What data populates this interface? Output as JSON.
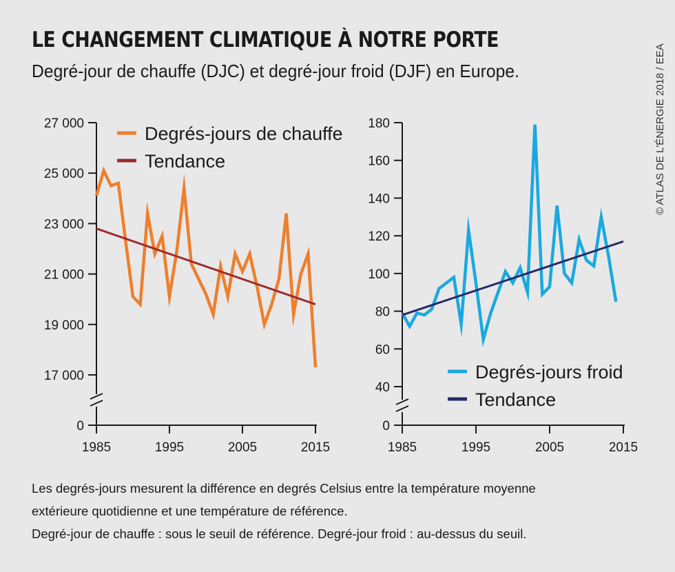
{
  "title": "LE CHANGEMENT CLIMATIQUE À NOTRE PORTE",
  "subtitle": "Degré-jour de chauffe (DJC) et degré-jour froid (DJF) en Europe.",
  "credit": "© ATLAS DE L'ÉNERGIE 2018 / EEA",
  "notes": [
    "Les degrés-jours mesurent la différence en degrés Celsius entre la température moyenne",
    "extérieure quotidienne et une température de référence.",
    "Degré-jour de chauffe : sous le seuil de référence. Degré-jour froid : au-dessus du seuil."
  ],
  "colors": {
    "djc": "#ee7f2d",
    "djc_trend": "#9e2a2b",
    "djf": "#1aa9df",
    "djf_trend": "#252a6a",
    "axis": "#1a1a1a"
  },
  "chart_data": [
    {
      "type": "line",
      "title": "",
      "xlabel": "",
      "ylabel": "",
      "x_ticks": [
        "1985",
        "1995",
        "2005",
        "2015"
      ],
      "y_ticks": [
        "0",
        "17 000",
        "19 000",
        "21 000",
        "23 000",
        "25 000",
        "27 000"
      ],
      "ylim": [
        17000,
        27000
      ],
      "axis_break": true,
      "legend": "top-right",
      "x": [
        1985,
        1986,
        1987,
        1988,
        1989,
        1990,
        1991,
        1992,
        1993,
        1994,
        1995,
        1996,
        1997,
        1998,
        1999,
        2000,
        2001,
        2002,
        2003,
        2004,
        2005,
        2006,
        2007,
        2008,
        2009,
        2010,
        2011,
        2012,
        2013,
        2014,
        2015
      ],
      "series": [
        {
          "name": "Degrés-jours de chauffe",
          "values": [
            24100,
            25100,
            24500,
            24600,
            22300,
            20100,
            19800,
            23400,
            21800,
            22500,
            20100,
            21900,
            24400,
            21400,
            20800,
            20200,
            19400,
            21300,
            20100,
            21800,
            21100,
            21800,
            20500,
            19000,
            19800,
            20800,
            23400,
            19400,
            21000,
            21800,
            17300
          ]
        },
        {
          "name": "Tendance",
          "x": [
            1985,
            2015
          ],
          "values": [
            22800,
            19800
          ]
        }
      ]
    },
    {
      "type": "line",
      "title": "",
      "xlabel": "",
      "ylabel": "",
      "x_ticks": [
        "1985",
        "1995",
        "2005",
        "2015"
      ],
      "y_ticks": [
        "0",
        "40",
        "60",
        "80",
        "100",
        "120",
        "140",
        "160",
        "180"
      ],
      "ylim": [
        40,
        180
      ],
      "axis_break": true,
      "legend": "bottom-right",
      "x": [
        1985,
        1986,
        1987,
        1988,
        1989,
        1990,
        1991,
        1992,
        1993,
        1994,
        1995,
        1996,
        1997,
        1998,
        1999,
        2000,
        2001,
        2002,
        2003,
        2004,
        2005,
        2006,
        2007,
        2008,
        2009,
        2010,
        2011,
        2012,
        2013,
        2014,
        2015
      ],
      "series": [
        {
          "name": "Degrés-jours froid",
          "values": [
            79,
            72,
            79,
            78,
            81,
            92,
            95,
            98,
            73,
            123,
            95,
            65,
            79,
            90,
            101,
            95,
            103,
            90,
            179,
            89,
            93,
            136,
            100,
            95,
            118,
            107,
            104,
            130,
            109,
            85,
            null
          ]
        },
        {
          "name": "Tendance",
          "x": [
            1985,
            2015
          ],
          "values": [
            78,
            117
          ]
        }
      ]
    }
  ]
}
